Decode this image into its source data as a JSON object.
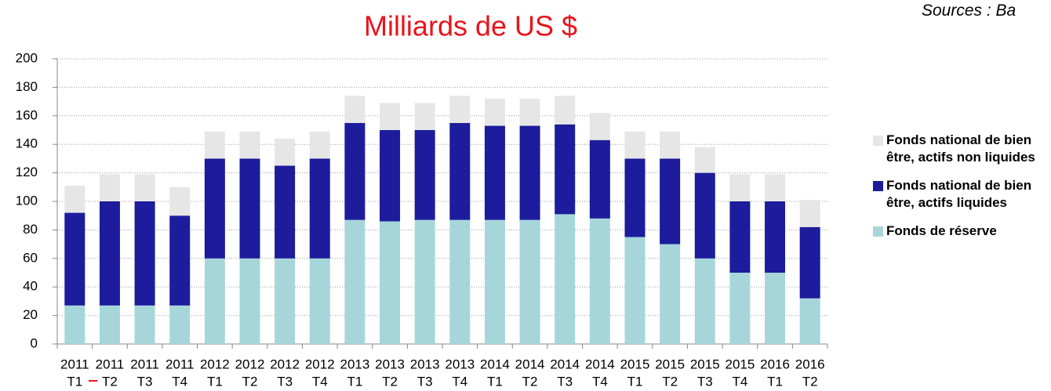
{
  "chart_data": {
    "type": "stacked_bar",
    "title": "Milliards de US $",
    "source": "Sources : Ba",
    "categories": [
      [
        "2011",
        "T1"
      ],
      [
        "2011",
        "T2"
      ],
      [
        "2011",
        "T3"
      ],
      [
        "2011",
        "T4"
      ],
      [
        "2012",
        "T1"
      ],
      [
        "2012",
        "T2"
      ],
      [
        "2012",
        "T3"
      ],
      [
        "2012",
        "T4"
      ],
      [
        "2013",
        "T1"
      ],
      [
        "2013",
        "T2"
      ],
      [
        "2013",
        "T3"
      ],
      [
        "2013",
        "T4"
      ],
      [
        "2014",
        "T1"
      ],
      [
        "2014",
        "T2"
      ],
      [
        "2014",
        "T3"
      ],
      [
        "2014",
        "T4"
      ],
      [
        "2015",
        "T1"
      ],
      [
        "2015",
        "T2"
      ],
      [
        "2015",
        "T3"
      ],
      [
        "2015",
        "T4"
      ],
      [
        "2016",
        "T1"
      ],
      [
        "2016",
        "T2"
      ]
    ],
    "series": [
      {
        "name": "Fonds de réserve",
        "color": "#a6d6da",
        "values": [
          27,
          27,
          27,
          27,
          60,
          60,
          60,
          60,
          87,
          86,
          87,
          87,
          87,
          87,
          91,
          88,
          75,
          70,
          60,
          50,
          50,
          32
        ]
      },
      {
        "name": "Fonds national de bien être, actifs liquides",
        "color": "#1c1c9c",
        "values": [
          65,
          73,
          73,
          63,
          70,
          70,
          65,
          70,
          68,
          64,
          63,
          68,
          66,
          66,
          63,
          55,
          55,
          60,
          60,
          50,
          50,
          50
        ]
      },
      {
        "name": "Fonds national de bien être, actifs non liquides",
        "color": "#e6e6e6",
        "values": [
          19,
          19,
          19,
          20,
          19,
          19,
          19,
          19,
          19,
          19,
          19,
          19,
          19,
          19,
          20,
          19,
          19,
          19,
          18,
          19,
          19,
          19
        ]
      }
    ],
    "ylim": [
      0,
      200
    ],
    "yticks": [
      0,
      20,
      40,
      60,
      80,
      100,
      120,
      140,
      160,
      180,
      200
    ],
    "grid": true,
    "legend": "right"
  }
}
